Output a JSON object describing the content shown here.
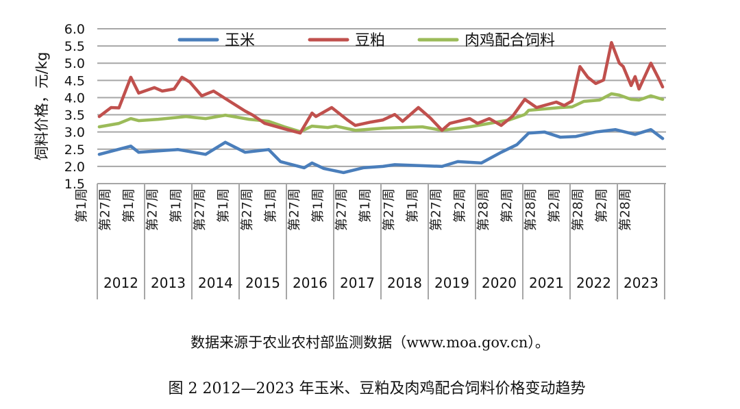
{
  "chart_data": {
    "type": "line",
    "ylabel": "饲料价格，元/kg",
    "ylim": [
      1.5,
      6.0
    ],
    "yticks": [
      "1.5",
      "2.0",
      "2.5",
      "3.0",
      "3.5",
      "4.0",
      "4.5",
      "5.0",
      "5.5",
      "6.0"
    ],
    "grid": true,
    "legend_position": "top",
    "x_week_labels": [
      "第1周",
      "第27周",
      "第1周",
      "第27周",
      "第1周",
      "第27周",
      "第1周",
      "第27周",
      "第1周",
      "第27周",
      "第1周",
      "第27周",
      "第1周",
      "第27周",
      "第1周",
      "第27周",
      "第2周",
      "第28周",
      "第2周",
      "第28周",
      "第2周",
      "第28周",
      "第2周",
      "第28周"
    ],
    "x_year_labels": [
      "2012",
      "2013",
      "2014",
      "2015",
      "2016",
      "2017",
      "2018",
      "2019",
      "2020",
      "2021",
      "2022",
      "2023"
    ],
    "series": [
      {
        "name": "玉米",
        "color": "#4a7ebb",
        "points": [
          [
            "2012-01",
            2.35
          ],
          [
            "2012-09",
            2.59
          ],
          [
            "2012-11",
            2.41
          ],
          [
            "2013-09",
            2.49
          ],
          [
            "2014-04",
            2.35
          ],
          [
            "2014-09",
            2.7
          ],
          [
            "2015-02",
            2.41
          ],
          [
            "2015-08",
            2.49
          ],
          [
            "2015-11",
            2.14
          ],
          [
            "2016-05",
            1.96
          ],
          [
            "2016-07",
            2.1
          ],
          [
            "2016-10",
            1.94
          ],
          [
            "2017-03",
            1.82
          ],
          [
            "2017-08",
            1.96
          ],
          [
            "2018-01",
            2.0
          ],
          [
            "2018-04",
            2.05
          ],
          [
            "2019-04",
            2.0
          ],
          [
            "2019-08",
            2.14
          ],
          [
            "2020-02",
            2.1
          ],
          [
            "2020-07",
            2.41
          ],
          [
            "2020-11",
            2.63
          ],
          [
            "2021-02",
            2.97
          ],
          [
            "2021-06",
            3.0
          ],
          [
            "2021-10",
            2.85
          ],
          [
            "2022-02",
            2.87
          ],
          [
            "2022-07",
            3.0
          ],
          [
            "2022-12",
            3.07
          ],
          [
            "2023-05",
            2.93
          ],
          [
            "2023-09",
            3.07
          ],
          [
            "2023-12",
            2.81
          ]
        ]
      },
      {
        "name": "豆粕",
        "color": "#c0504d",
        "points": [
          [
            "2012-01",
            3.45
          ],
          [
            "2012-04",
            3.71
          ],
          [
            "2012-06",
            3.7
          ],
          [
            "2012-09",
            4.59
          ],
          [
            "2012-11",
            4.13
          ],
          [
            "2013-03",
            4.29
          ],
          [
            "2013-05",
            4.19
          ],
          [
            "2013-08",
            4.25
          ],
          [
            "2013-10",
            4.59
          ],
          [
            "2013-12",
            4.45
          ],
          [
            "2014-03",
            4.05
          ],
          [
            "2014-06",
            4.19
          ],
          [
            "2014-10",
            3.9
          ],
          [
            "2015-02",
            3.61
          ],
          [
            "2015-04",
            3.49
          ],
          [
            "2015-07",
            3.25
          ],
          [
            "2015-12",
            3.09
          ],
          [
            "2016-04",
            2.97
          ],
          [
            "2016-07",
            3.55
          ],
          [
            "2016-08",
            3.45
          ],
          [
            "2016-12",
            3.71
          ],
          [
            "2017-04",
            3.35
          ],
          [
            "2017-06",
            3.19
          ],
          [
            "2017-10",
            3.29
          ],
          [
            "2018-01",
            3.35
          ],
          [
            "2018-04",
            3.51
          ],
          [
            "2018-06",
            3.31
          ],
          [
            "2018-10",
            3.71
          ],
          [
            "2019-01",
            3.41
          ],
          [
            "2019-04",
            3.05
          ],
          [
            "2019-06",
            3.25
          ],
          [
            "2019-11",
            3.39
          ],
          [
            "2020-01",
            3.25
          ],
          [
            "2020-04",
            3.39
          ],
          [
            "2020-07",
            3.19
          ],
          [
            "2020-10",
            3.47
          ],
          [
            "2021-01",
            3.95
          ],
          [
            "2021-04",
            3.71
          ],
          [
            "2021-09",
            3.87
          ],
          [
            "2021-11",
            3.77
          ],
          [
            "2022-01",
            3.9
          ],
          [
            "2022-03",
            4.9
          ],
          [
            "2022-05",
            4.59
          ],
          [
            "2022-07",
            4.41
          ],
          [
            "2022-09",
            4.51
          ],
          [
            "2022-11",
            5.6
          ],
          [
            "2023-01",
            5.0
          ],
          [
            "2023-02",
            4.9
          ],
          [
            "2023-04",
            4.35
          ],
          [
            "2023-05",
            4.61
          ],
          [
            "2023-06",
            4.25
          ],
          [
            "2023-09",
            5.0
          ],
          [
            "2023-11",
            4.55
          ],
          [
            "2023-12",
            4.31
          ]
        ]
      },
      {
        "name": "肉鸡配合饲料",
        "color": "#9bbb59",
        "points": [
          [
            "2012-01",
            3.15
          ],
          [
            "2012-06",
            3.25
          ],
          [
            "2012-09",
            3.39
          ],
          [
            "2012-11",
            3.33
          ],
          [
            "2013-04",
            3.37
          ],
          [
            "2013-11",
            3.45
          ],
          [
            "2014-04",
            3.39
          ],
          [
            "2014-09",
            3.49
          ],
          [
            "2015-03",
            3.37
          ],
          [
            "2015-08",
            3.31
          ],
          [
            "2015-12",
            3.15
          ],
          [
            "2016-04",
            3.01
          ],
          [
            "2016-07",
            3.17
          ],
          [
            "2016-11",
            3.13
          ],
          [
            "2017-01",
            3.17
          ],
          [
            "2017-06",
            3.05
          ],
          [
            "2018-01",
            3.11
          ],
          [
            "2018-11",
            3.15
          ],
          [
            "2019-04",
            3.05
          ],
          [
            "2019-11",
            3.15
          ],
          [
            "2020-04",
            3.25
          ],
          [
            "2020-09",
            3.35
          ],
          [
            "2021-01",
            3.51
          ],
          [
            "2021-02",
            3.63
          ],
          [
            "2021-10",
            3.71
          ],
          [
            "2022-01",
            3.73
          ],
          [
            "2022-04",
            3.89
          ],
          [
            "2022-08",
            3.93
          ],
          [
            "2022-11",
            4.11
          ],
          [
            "2023-01",
            4.07
          ],
          [
            "2023-04",
            3.95
          ],
          [
            "2023-06",
            3.93
          ],
          [
            "2023-09",
            4.05
          ],
          [
            "2023-12",
            3.95
          ]
        ]
      }
    ]
  },
  "captions": {
    "source": "数据来源于农业农村部监测数据（www.moa.gov.cn）。",
    "figure_title": "图 2 2012—2023 年玉米、豆粕及肉鸡配合饲料价格变动趋势"
  }
}
